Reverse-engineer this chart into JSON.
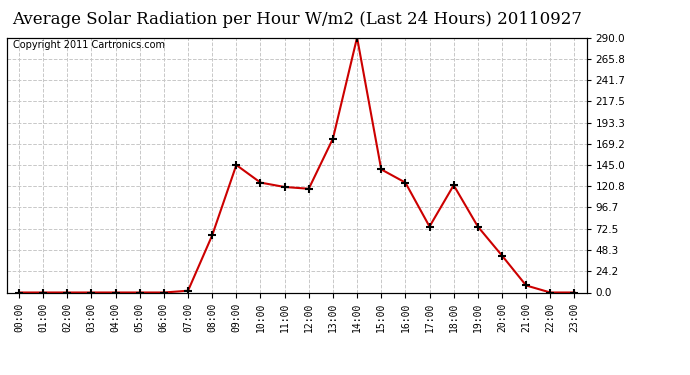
{
  "title": "Average Solar Radiation per Hour W/m2 (Last 24 Hours) 20110927",
  "copyright": "Copyright 2011 Cartronics.com",
  "hours": [
    "00:00",
    "01:00",
    "02:00",
    "03:00",
    "04:00",
    "05:00",
    "06:00",
    "07:00",
    "08:00",
    "09:00",
    "10:00",
    "11:00",
    "12:00",
    "13:00",
    "14:00",
    "15:00",
    "16:00",
    "17:00",
    "18:00",
    "19:00",
    "20:00",
    "21:00",
    "22:00",
    "23:00"
  ],
  "values": [
    0,
    0,
    0,
    0,
    0,
    0,
    0,
    2,
    65,
    145,
    125,
    120,
    118,
    175,
    290,
    140,
    125,
    75,
    122,
    75,
    42,
    8,
    0,
    0
  ],
  "line_color": "#cc0000",
  "marker": "+",
  "marker_color": "#000000",
  "background_color": "#ffffff",
  "grid_color": "#c8c8c8",
  "ylim": [
    0,
    290
  ],
  "yticks": [
    0.0,
    24.2,
    48.3,
    72.5,
    96.7,
    120.8,
    145.0,
    169.2,
    193.3,
    217.5,
    241.7,
    265.8,
    290.0
  ],
  "title_fontsize": 12,
  "copyright_fontsize": 7
}
